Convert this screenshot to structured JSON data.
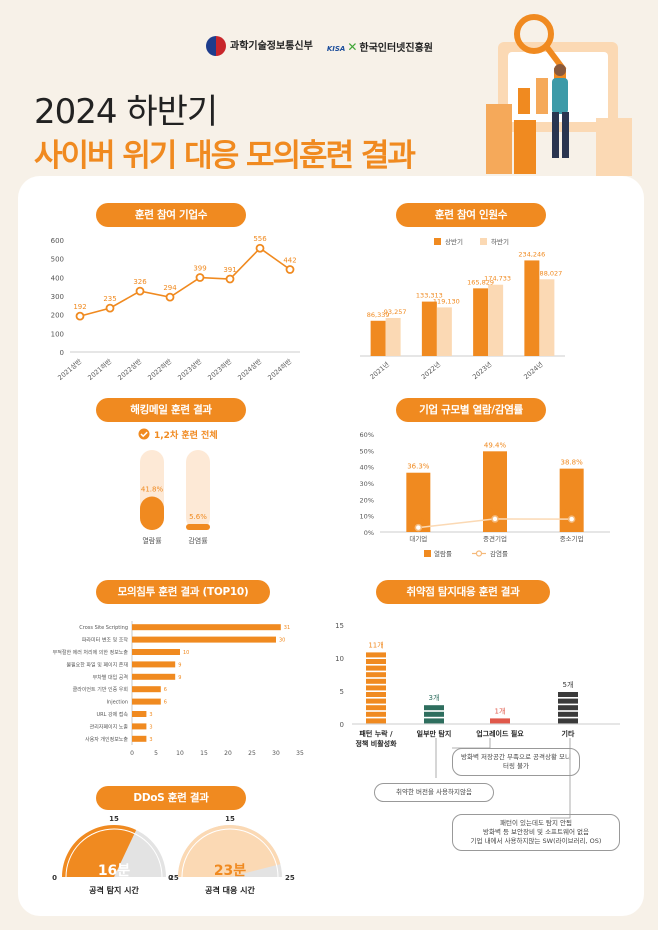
{
  "header": {
    "ministry": "과학기술정보통신부",
    "kisa_mark": "KISA",
    "kisa_name": "한국인터넷진흥원",
    "title_line1": "2024 하반기",
    "title_line2": "사이버 위기 대응 모의훈련 결과"
  },
  "sections": {
    "companies": "훈련 참여 기업수",
    "people": "훈련 참여 인원수",
    "phishing": "해킹메일 훈련 결과",
    "size": "기업 규모별 열람/감염률",
    "pentest": "모의침투 훈련 결과 (TOP10)",
    "vuln": "취약점 탐지대응 훈련 결과",
    "ddos": "DDoS 훈련 결과"
  },
  "colors": {
    "orange": "#f08a20",
    "light_orange": "#fbd9b4",
    "pale": "#fde9d6",
    "dark_green": "#2e6e5e",
    "red": "#e0584a",
    "dark": "#3a3a3a",
    "bg": "#f7f1e8"
  },
  "chart_data": [
    {
      "id": "companies",
      "type": "line",
      "categories": [
        "2021상반",
        "2021하반",
        "2022상반",
        "2022하반",
        "2023상반",
        "2023하반",
        "2024상반",
        "2024하반"
      ],
      "values": [
        192,
        235,
        326,
        294,
        399,
        391,
        556,
        442
      ],
      "yticks": [
        0,
        100,
        200,
        300,
        400,
        500,
        600
      ],
      "ylim": [
        0,
        600
      ]
    },
    {
      "id": "people",
      "type": "bar",
      "categories": [
        "2021년",
        "2022년",
        "2023년",
        "2024년"
      ],
      "series": [
        {
          "name": "상반기",
          "values": [
            86339,
            133313,
            165829,
            234246
          ],
          "labels": [
            "86,339",
            "133,313",
            "165,829",
            "234,246"
          ]
        },
        {
          "name": "하반기",
          "values": [
            93257,
            119130,
            174733,
            188027
          ],
          "labels": [
            "93,257",
            "119,130",
            "174,733",
            "188,027"
          ]
        }
      ],
      "ylim": [
        0,
        250000
      ]
    },
    {
      "id": "phishing",
      "type": "bar",
      "subtitle": "1,2차 훈련 전체",
      "categories": [
        "열람률",
        "감염률"
      ],
      "values": [
        41.8,
        5.6
      ],
      "labels": [
        "41.8%",
        "5.6%"
      ],
      "ylim": [
        0,
        100
      ]
    },
    {
      "id": "size",
      "type": "bar",
      "categories": [
        "대기업",
        "중견기업",
        "중소기업"
      ],
      "series": [
        {
          "name": "열람률",
          "values": [
            36.3,
            49.4,
            38.8
          ],
          "labels": [
            "36.3%",
            "49.4%",
            "38.8%"
          ]
        },
        {
          "name": "감염률",
          "values": [
            2.7,
            8,
            7.9
          ],
          "labels": [
            "2.7%",
            "8%",
            "7.9%"
          ]
        }
      ],
      "yticks": [
        "0%",
        "10%",
        "20%",
        "30%",
        "40%",
        "50%",
        "60%"
      ],
      "ylim": [
        0,
        60
      ]
    },
    {
      "id": "pentest",
      "type": "bar",
      "orientation": "horizontal",
      "categories": [
        "Cross Site Scripting",
        "파라미터 변조 및 조작",
        "부적절한 에러 처리에 의한 정보노출",
        "불필요한 파일 및 페이지 존재",
        "무차별 대입 공격",
        "클라이언트 기반 인증 우회",
        "Injection",
        "URL 강제 접속",
        "관리자페이지 노출",
        "사용자 개인정보노출"
      ],
      "values": [
        31,
        30,
        10,
        9,
        9,
        6,
        6,
        3,
        3,
        3
      ],
      "xticks": [
        0,
        5,
        10,
        15,
        20,
        25,
        30,
        35
      ],
      "xlim": [
        0,
        35
      ]
    },
    {
      "id": "vuln",
      "type": "bar",
      "categories": [
        "패턴 누락 / 정책 비활성화",
        "일부만 탐지",
        "업그레이드 필요",
        "기타"
      ],
      "values": [
        11,
        3,
        1,
        5
      ],
      "labels": [
        "11개",
        "3개",
        "1개",
        "5개"
      ],
      "yticks": [
        0,
        5,
        10,
        15
      ],
      "ylim": [
        0,
        15
      ]
    },
    {
      "id": "ddos",
      "type": "pie",
      "gauges": [
        {
          "name": "공격 탐지 시간",
          "value": 16,
          "label": "16분",
          "min": 0,
          "mid": 15,
          "max": 25
        },
        {
          "name": "공격 대응 시간",
          "value": 23,
          "label": "23분",
          "min": 0,
          "mid": 15,
          "max": 25
        }
      ]
    }
  ],
  "vuln_notes": {
    "note1": "방화벽 저장공간 부족으로 공격상황 모니터링 불가",
    "note2": "취약한 버전을 사용하지않음",
    "note3_1": "패턴이 있는데도 탐지 안됨",
    "note3_2": "방화벽 등 보안장비 및 소프트웨어 없음",
    "note3_3": "기업 내에서 사용하지않는 SW(라이브러리, OS)"
  }
}
